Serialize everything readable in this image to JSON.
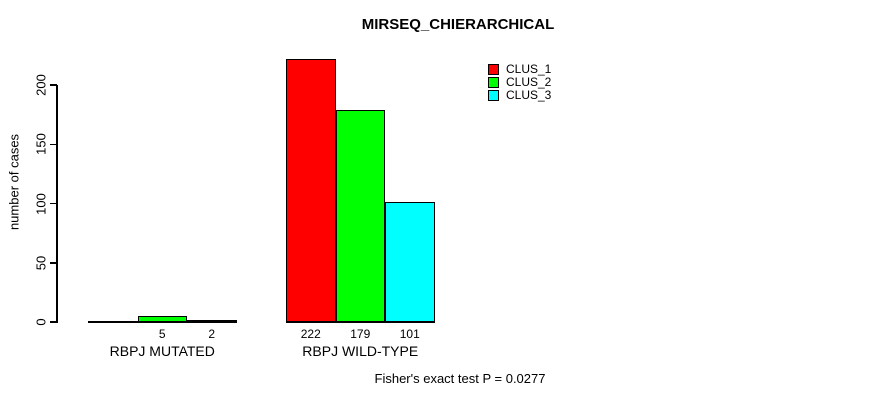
{
  "chart_data": {
    "type": "bar",
    "title": "MIRSEQ_CHIERARCHICAL",
    "ylabel": "number of cases",
    "xlabel": "",
    "categories": [
      "RBPJ MUTATED",
      "RBPJ WILD-TYPE"
    ],
    "series": [
      {
        "name": "CLUS_1",
        "color": "#ff0000",
        "values": [
          0,
          222
        ]
      },
      {
        "name": "CLUS_2",
        "color": "#00ff00",
        "values": [
          5,
          179
        ]
      },
      {
        "name": "CLUS_3",
        "color": "#00ffff",
        "values": [
          2,
          101
        ]
      }
    ],
    "bar_value_labels": [
      [
        "",
        "5",
        "2"
      ],
      [
        "222",
        "179",
        "101"
      ]
    ],
    "yticks": [
      0,
      50,
      100,
      150,
      200
    ],
    "ylim": [
      0,
      230
    ],
    "grid": false,
    "legend_position": "top-right",
    "annotation": "Fisher's exact test P = 0.0277"
  },
  "colors": {
    "background": "#ffffff",
    "axis": "#000000",
    "text": "#000000",
    "bar_border": "#000000"
  }
}
